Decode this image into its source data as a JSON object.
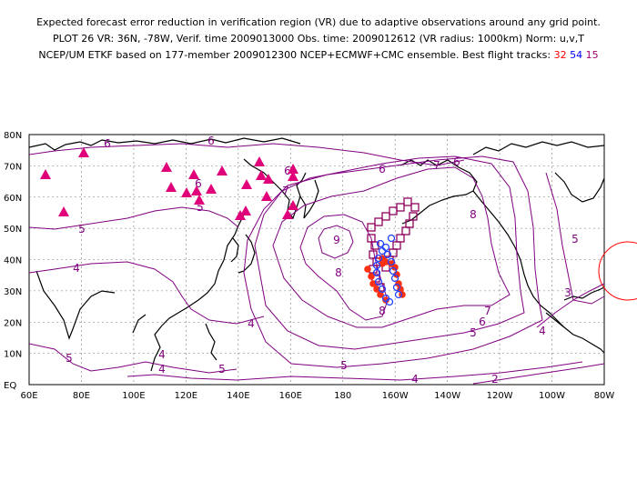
{
  "title": {
    "line1": "Expected forecast error reduction in verification region (VR) due to adaptive observations around any grid point.",
    "line2": "PLOT 26 VR: 36N, -78W, Verif. time 2009013000 Obs. time: 2009012612 (VR radius: 1000km) Norm: u,v,T",
    "line3_prefix": "NCEP/UM ETKF based on 177-member 2009012300 NCEP+ECMWF+CMC ensemble. Best flight tracks:",
    "track_32": "32",
    "track_54": "54",
    "track_15": "15"
  },
  "colors": {
    "contour": "#800080",
    "triangle": "#e0007a",
    "track_32": "#ff3010",
    "track_54": "#2040ff",
    "track_15": "#900060",
    "verification_circle": "#ff0000",
    "coast": "#000000",
    "grid": "#777777"
  },
  "axes": {
    "lat_labels": [
      "80N",
      "70N",
      "60N",
      "50N",
      "40N",
      "30N",
      "20N",
      "10N",
      "EQ"
    ],
    "lon_labels": [
      "60E",
      "80E",
      "100E",
      "120E",
      "140E",
      "160E",
      "180",
      "160W",
      "140W",
      "120W",
      "100W",
      "80W"
    ]
  },
  "contour_labels": [
    "6",
    "6",
    "6",
    "6",
    "7",
    "6",
    "5",
    "5",
    "4",
    "6",
    "5",
    "9",
    "8",
    "8",
    "8",
    "7",
    "6",
    "5",
    "4",
    "3",
    "4",
    "4",
    "4",
    "5",
    "5",
    "5",
    "4",
    "2",
    "7"
  ],
  "flight_tracks": [
    {
      "number": "32",
      "color": "red",
      "marker": "filled circle"
    },
    {
      "number": "54",
      "color": "blue",
      "marker": "open circle"
    },
    {
      "number": "15",
      "color": "purple",
      "marker": "open square"
    }
  ],
  "markers": {
    "type": "triangle",
    "meaning": "observation sites"
  }
}
